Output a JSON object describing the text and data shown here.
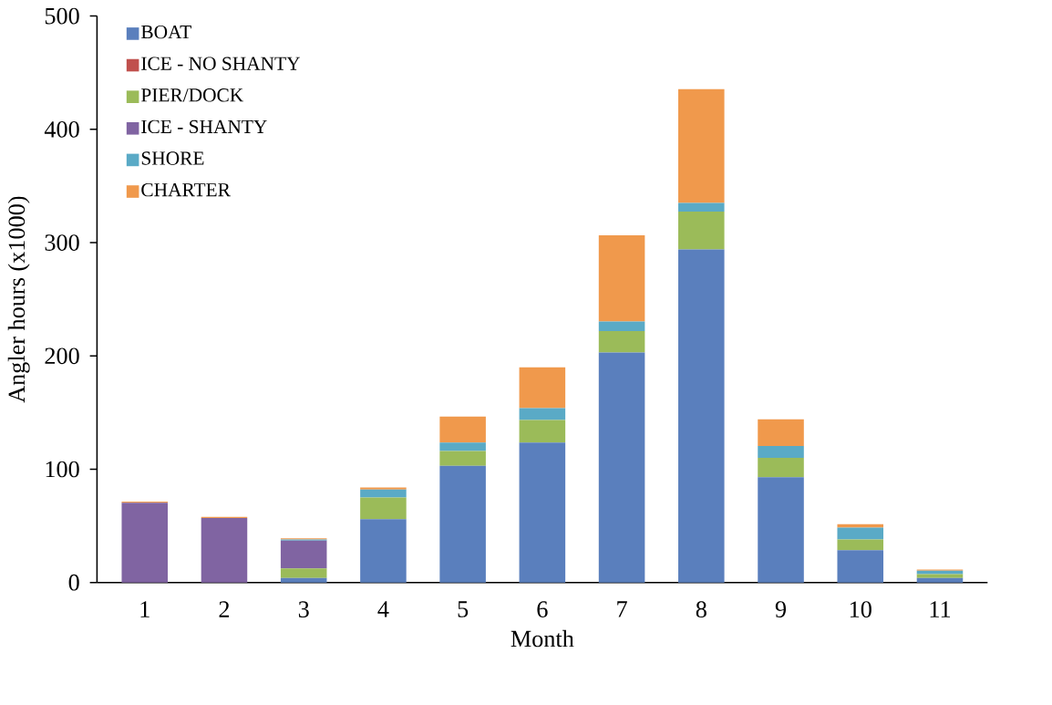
{
  "chart_data": {
    "type": "bar",
    "stacked": true,
    "xlabel": "Month",
    "ylabel": "Angler hours (x1000)",
    "categories": [
      "1",
      "2",
      "3",
      "4",
      "5",
      "6",
      "7",
      "8",
      "9",
      "10",
      "11"
    ],
    "series": [
      {
        "name": "BOAT",
        "color": "#5a7fbd",
        "values": [
          0,
          0,
          4,
          56,
          103,
          123.5,
          203,
          294,
          93,
          28.5,
          4
        ]
      },
      {
        "name": "ICE - NO SHANTY",
        "color": "#c0504d",
        "values": [
          0,
          0,
          0,
          0,
          0,
          0,
          0,
          0,
          0,
          0,
          0
        ]
      },
      {
        "name": "PIER/DOCK",
        "color": "#9bbb59",
        "values": [
          0,
          0,
          8.5,
          19,
          13,
          20,
          19,
          33.5,
          17,
          9.5,
          3.5
        ]
      },
      {
        "name": "ICE - SHANTY",
        "color": "#8064a2",
        "values": [
          70.5,
          57,
          24.5,
          0,
          0,
          0,
          0,
          0,
          0,
          0,
          0
        ]
      },
      {
        "name": "SHORE",
        "color": "#5aaac6",
        "values": [
          0,
          0,
          1,
          7,
          7.5,
          10.5,
          8.5,
          7.5,
          10.5,
          10.5,
          3
        ]
      },
      {
        "name": "CHARTER",
        "color": "#f0994c",
        "values": [
          1,
          1,
          1,
          2,
          23,
          36,
          76,
          100.5,
          23.5,
          3,
          1
        ]
      }
    ],
    "ylim": [
      0,
      500
    ],
    "yticks": [
      0,
      100,
      200,
      300,
      400,
      500
    ],
    "legend": "top left"
  }
}
